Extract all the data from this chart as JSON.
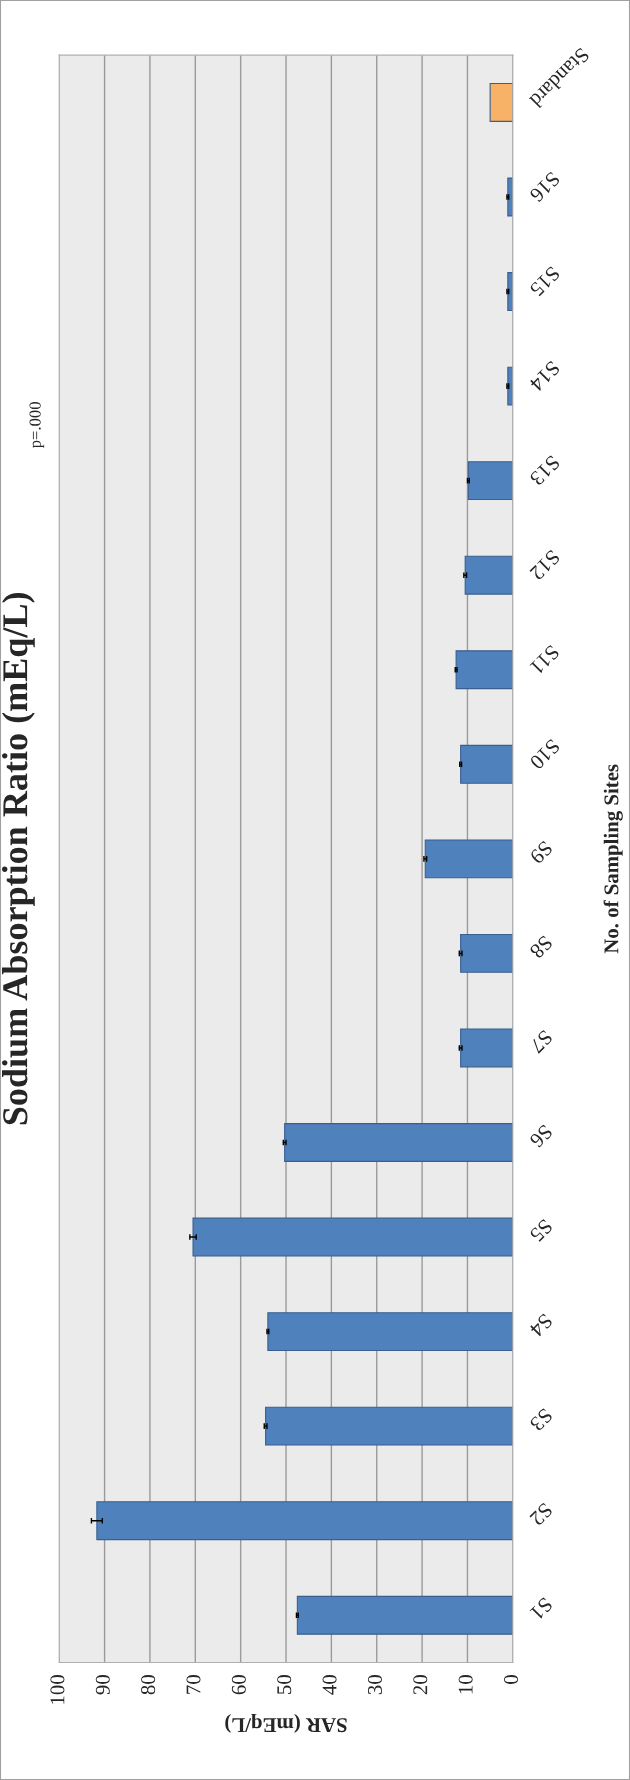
{
  "chart_data": {
    "type": "bar",
    "orientation": "horizontal",
    "title": "Sodium Absorption Ratio (mEq/L)",
    "xlabel": "SAR (mEq/L)",
    "ylabel": "No. of Sampling Sites",
    "categories": [
      "Standard",
      "S16",
      "S15",
      "S14",
      "S13",
      "S12",
      "S11",
      "S10",
      "S9",
      "S8",
      "S7",
      "S6",
      "S5",
      "S4",
      "S3",
      "S2",
      "S1"
    ],
    "values": [
      5,
      1.1,
      1.1,
      1.1,
      9.8,
      10.5,
      12.5,
      11.5,
      19.3,
      11.5,
      11.5,
      50.3,
      70.5,
      54.0,
      54.5,
      91.7,
      47.5
    ],
    "errors": [
      null,
      0.2,
      0.2,
      0.2,
      0.2,
      0.3,
      0.2,
      0.2,
      0.3,
      0.3,
      0.3,
      0.3,
      0.7,
      0.2,
      0.3,
      1.2,
      0.2
    ],
    "colors": [
      "#f7b267",
      "#4f81bd",
      "#4f81bd",
      "#4f81bd",
      "#4f81bd",
      "#4f81bd",
      "#4f81bd",
      "#4f81bd",
      "#4f81bd",
      "#4f81bd",
      "#4f81bd",
      "#4f81bd",
      "#4f81bd",
      "#4f81bd",
      "#4f81bd",
      "#4f81bd",
      "#4f81bd"
    ],
    "xlim": [
      100,
      0
    ],
    "xticks": [
      0,
      10,
      20,
      30,
      40,
      50,
      60,
      70,
      80,
      90,
      100
    ],
    "grid": "x",
    "annotations": [
      "p=.000"
    ]
  }
}
